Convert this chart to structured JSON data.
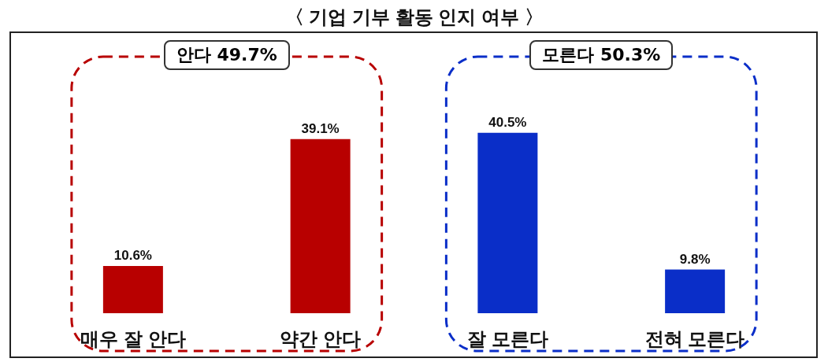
{
  "chart_data": {
    "type": "bar",
    "title": "〈 기업 기부 활동 인지 여부 〉",
    "categories": [
      "매우 잘 안다",
      "약간 안다",
      "잘 모른다",
      "전혀 모른다"
    ],
    "values": [
      10.6,
      39.1,
      40.5,
      9.8
    ],
    "colors": [
      "#b80000",
      "#b80000",
      "#0a2ec8",
      "#0a2ec8"
    ],
    "value_labels": [
      "10.6%",
      "39.1%",
      "40.5%",
      "9.8%"
    ],
    "annotations": [
      "안다 49.7%",
      "모른다 50.3%"
    ]
  }
}
